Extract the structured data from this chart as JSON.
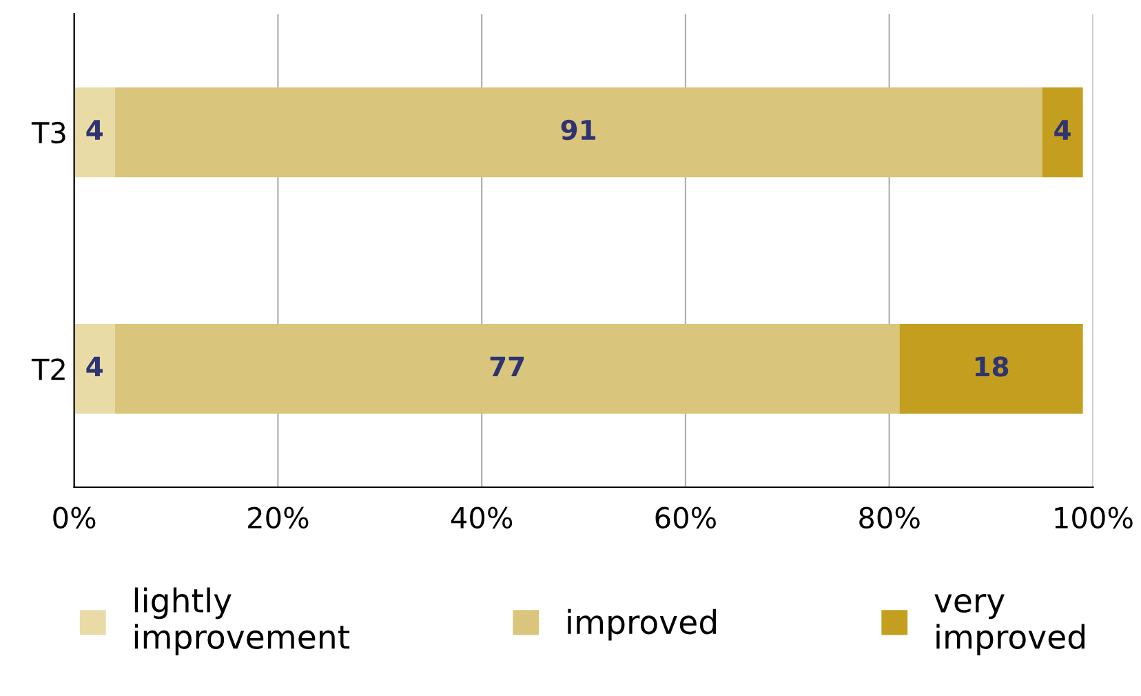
{
  "chart_data": {
    "type": "bar",
    "orientation": "horizontal",
    "stacked": true,
    "categories": [
      "T3",
      "T2"
    ],
    "series": [
      {
        "name": "lightly\nimprovement",
        "color": "#e9dba6",
        "values": [
          4,
          4
        ]
      },
      {
        "name": "improved",
        "color": "#d9c57b",
        "values": [
          91,
          77
        ]
      },
      {
        "name": "very\nimproved",
        "color": "#c49f1f",
        "values": [
          4,
          18
        ]
      }
    ],
    "xlim": [
      0,
      100
    ],
    "xticks": [
      {
        "value": 0,
        "label": "0%"
      },
      {
        "value": 20,
        "label": "20%"
      },
      {
        "value": 40,
        "label": "40%"
      },
      {
        "value": 60,
        "label": "60%"
      },
      {
        "value": 80,
        "label": "80%"
      },
      {
        "value": 100,
        "label": "100%"
      }
    ],
    "grid": "x",
    "legend": "bottom",
    "data_labels": true
  }
}
